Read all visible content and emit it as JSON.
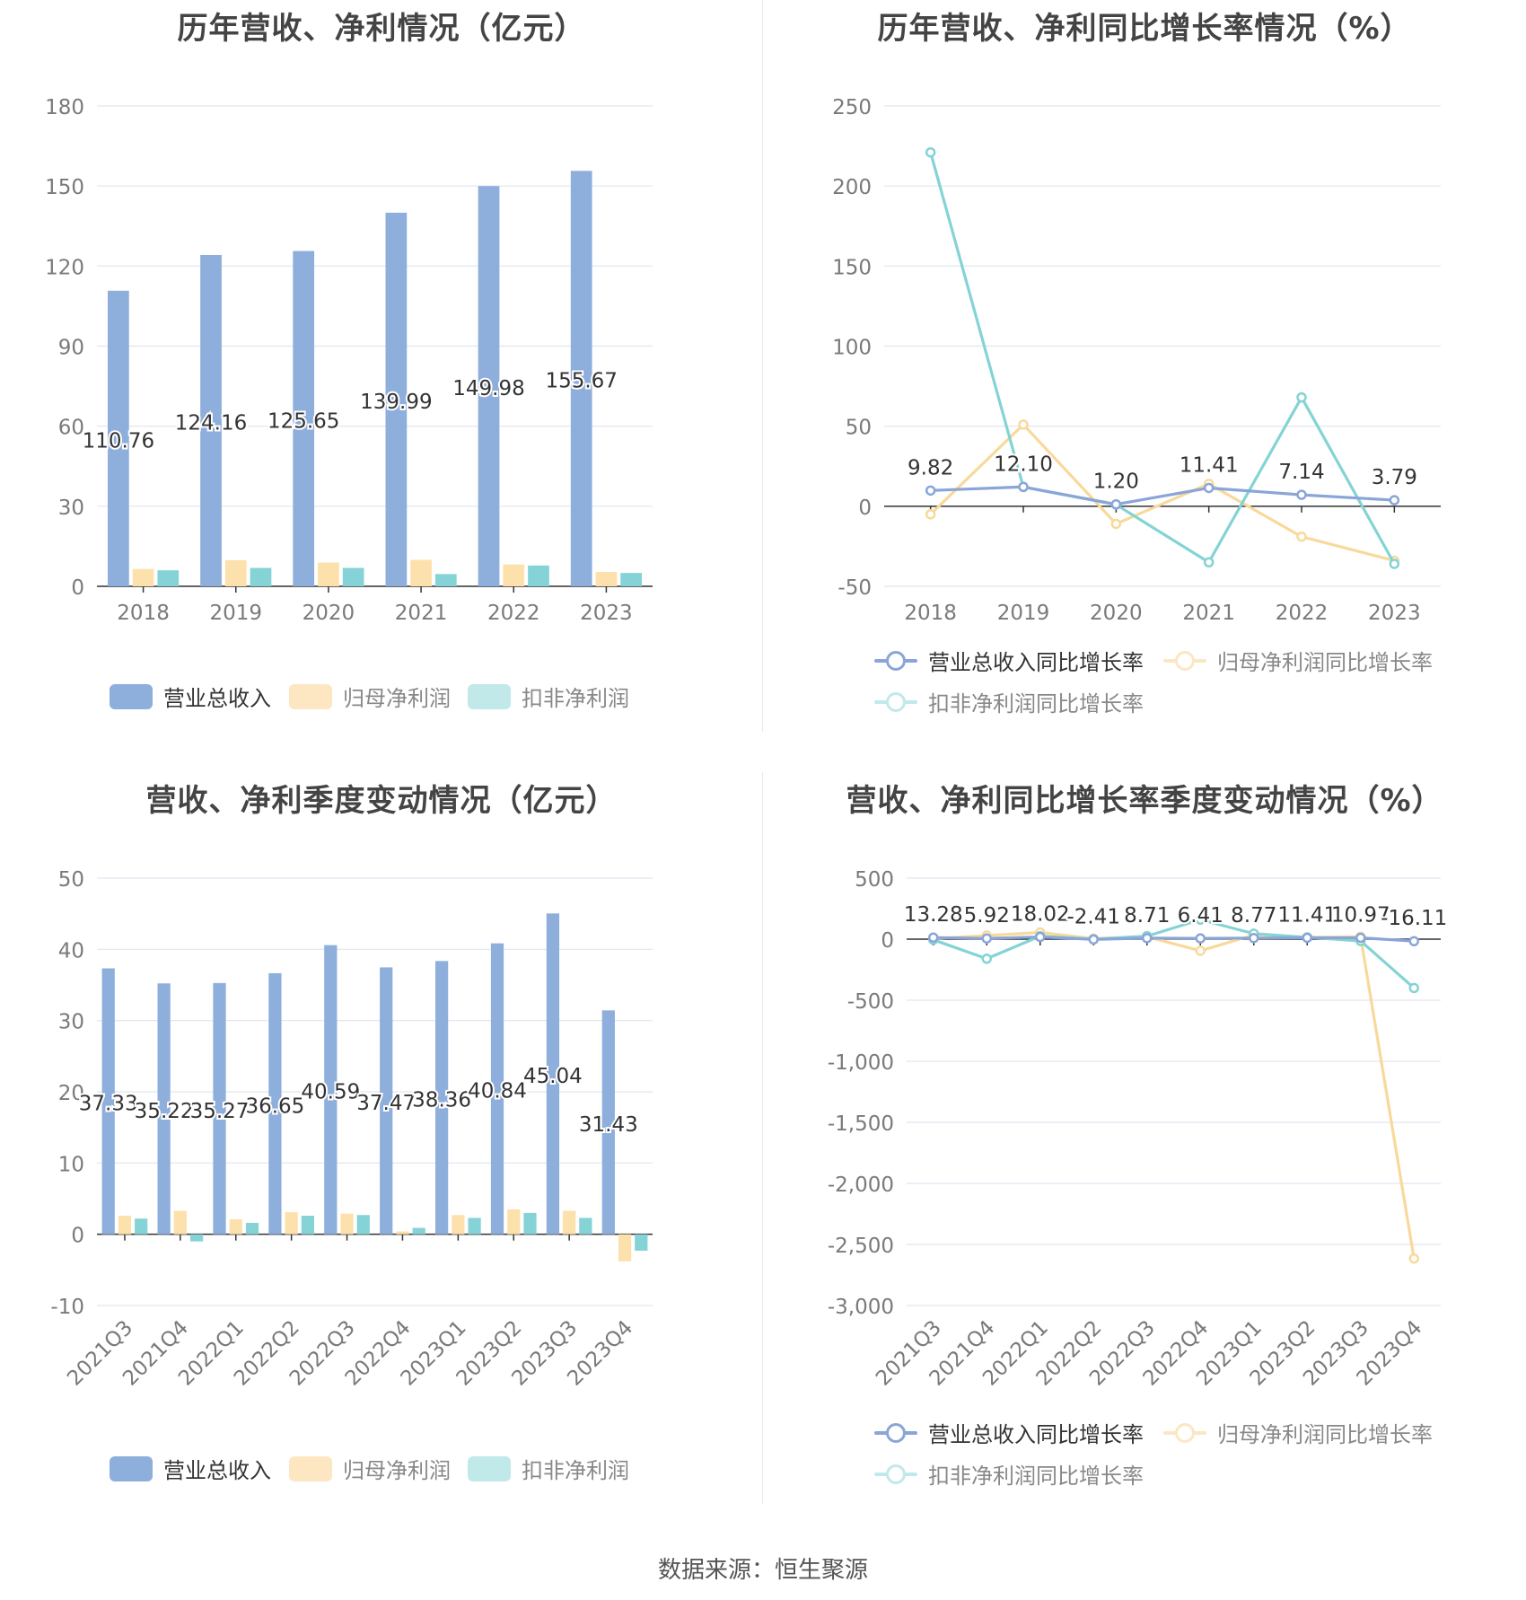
{
  "footer": "数据来源：恒生聚源",
  "colors": {
    "revenue": "#8eaedc",
    "net_profit": "#fde1ad",
    "deducted_profit": "#85d3d6",
    "line_revenue": "#8aa5d8",
    "line_net_profit": "#f9d99b",
    "line_deducted_profit": "#84d3d5",
    "grid": "#e0e5ef",
    "axis": "#333333",
    "tick": "#7a7a7a"
  },
  "chart_data": [
    {
      "type": "bar",
      "title": "历年营收、净利情况（亿元）",
      "categories": [
        "2018",
        "2019",
        "2020",
        "2021",
        "2022",
        "2023"
      ],
      "ylim": [
        0,
        180
      ],
      "yticks": [
        "0",
        "30",
        "60",
        "90",
        "120",
        "150",
        "180"
      ],
      "grid": true,
      "legend_position": "bottom",
      "series": [
        {
          "name": "营业总收入",
          "values": [
            110.76,
            124.16,
            125.65,
            139.99,
            149.98,
            155.67
          ],
          "labels": [
            "110.76",
            "124.16",
            "125.65",
            "139.99",
            "149.98",
            "155.67"
          ]
        },
        {
          "name": "归母净利润",
          "values": [
            6.5,
            9.8,
            8.9,
            9.9,
            8.2,
            5.4
          ]
        },
        {
          "name": "扣非净利润",
          "values": [
            6.0,
            6.9,
            6.9,
            4.6,
            7.8,
            5.0
          ]
        }
      ]
    },
    {
      "type": "line",
      "title": "历年营收、净利同比增长率情况（%）",
      "categories": [
        "2018",
        "2019",
        "2020",
        "2021",
        "2022",
        "2023"
      ],
      "ylim": [
        -50,
        250
      ],
      "yticks": [
        "-50",
        "0",
        "50",
        "100",
        "150",
        "200",
        "250"
      ],
      "grid": true,
      "legend_position": "bottom",
      "series": [
        {
          "name": "营业总收入同比增长率",
          "values": [
            9.82,
            12.1,
            1.2,
            11.41,
            7.14,
            3.79
          ],
          "labels": [
            "9.82",
            "12.10",
            "1.20",
            "11.41",
            "7.14",
            "3.79"
          ]
        },
        {
          "name": "归母净利润同比增长率",
          "values": [
            -5,
            51,
            -11,
            14,
            -19,
            -34
          ]
        },
        {
          "name": "扣非净利润同比增长率",
          "values": [
            221,
            12,
            1,
            -35,
            68,
            -36
          ]
        }
      ]
    },
    {
      "type": "bar",
      "title": "营收、净利季度变动情况（亿元）",
      "categories": [
        "2021Q3",
        "2021Q4",
        "2022Q1",
        "2022Q2",
        "2022Q3",
        "2022Q4",
        "2023Q1",
        "2023Q2",
        "2023Q3",
        "2023Q4"
      ],
      "ylim": [
        -10,
        50
      ],
      "yticks": [
        "-10",
        "0",
        "10",
        "20",
        "30",
        "40",
        "50"
      ],
      "grid": true,
      "legend_position": "bottom",
      "series": [
        {
          "name": "营业总收入",
          "values": [
            37.33,
            35.22,
            35.27,
            36.65,
            40.59,
            37.47,
            38.36,
            40.84,
            45.04,
            31.43
          ],
          "labels": [
            "37.33",
            "35.22",
            "35.27",
            "36.65",
            "40.59",
            "37.47",
            "38.36",
            "40.84",
            "45.04",
            "31.43"
          ]
        },
        {
          "name": "归母净利润",
          "values": [
            2.6,
            3.3,
            2.1,
            3.1,
            2.9,
            0.4,
            2.7,
            3.5,
            3.3,
            -3.8
          ]
        },
        {
          "name": "扣非净利润",
          "values": [
            2.2,
            -1.0,
            1.6,
            2.6,
            2.7,
            0.9,
            2.3,
            3.0,
            2.3,
            -2.3
          ]
        }
      ]
    },
    {
      "type": "line",
      "title": "营收、净利同比增长率季度变动情况（%）",
      "categories": [
        "2021Q3",
        "2021Q4",
        "2022Q1",
        "2022Q2",
        "2022Q3",
        "2022Q4",
        "2023Q1",
        "2023Q2",
        "2023Q3",
        "2023Q4"
      ],
      "ylim": [
        -3000,
        500
      ],
      "yticks": [
        "-3,000",
        "-2,500",
        "-2,000",
        "-1,500",
        "-1,000",
        "-500",
        "0",
        "500"
      ],
      "grid": true,
      "legend_position": "bottom",
      "series": [
        {
          "name": "营业总收入同比增长率",
          "values": [
            13.28,
            5.92,
            18.02,
            -2.41,
            8.71,
            6.41,
            8.77,
            11.41,
            10.97,
            -16.11
          ],
          "labels": [
            "13.28",
            "5.92",
            "18.02",
            "-2.41",
            "8.71",
            "6.41",
            "8.77",
            "11.41",
            "10.97",
            "-16.11"
          ]
        },
        {
          "name": "归母净利润同比增长率",
          "values": [
            5,
            30,
            55,
            5,
            20,
            -95,
            35,
            15,
            20,
            -2615
          ]
        },
        {
          "name": "扣非净利润同比增长率",
          "values": [
            -5,
            -160,
            25,
            0,
            25,
            160,
            45,
            15,
            -15,
            -400
          ]
        }
      ]
    }
  ]
}
